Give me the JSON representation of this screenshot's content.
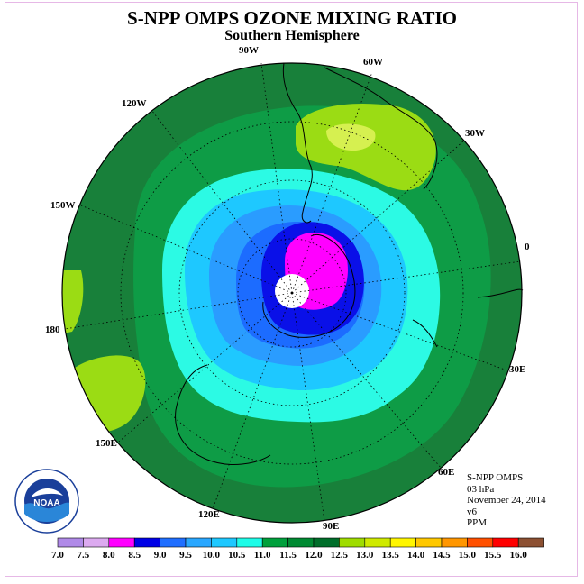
{
  "header": {
    "title": "S-NPP OMPS OZONE MIXING RATIO",
    "subtitle": "Southern Hemisphere"
  },
  "info": {
    "instrument": "S-NPP OMPS",
    "level": "03 hPa",
    "date": "November 24, 2014",
    "version": "v6",
    "units": "PPM"
  },
  "logo": {
    "text": "NOAA",
    "icon": "noaa-logo"
  },
  "longitude_labels": [
    "90W",
    "60W",
    "30W",
    "0",
    "30E",
    "60E",
    "90E",
    "120E",
    "150E",
    "180",
    "150W",
    "120W"
  ],
  "colorbar": {
    "ticks": [
      "7.0",
      "7.5",
      "8.0",
      "8.5",
      "9.0",
      "9.5",
      "10.0",
      "10.5",
      "11.0",
      "11.5",
      "12.0",
      "12.5",
      "13.0",
      "13.5",
      "14.0",
      "14.5",
      "15.0",
      "15.5",
      "16.0"
    ],
    "colors": [
      "#b08ae8",
      "#dcaaf0",
      "#ff00ff",
      "#0000e6",
      "#1f6eff",
      "#29a7ff",
      "#1ec8ff",
      "#1efce8",
      "#00a03c",
      "#008a32",
      "#006e2a",
      "#9fdc00",
      "#cfea00",
      "#fff600",
      "#ffc800",
      "#ff9600",
      "#ff5000",
      "#ff0000",
      "#8c5032"
    ]
  },
  "colors": {
    "dark_green": "#1a7a3a",
    "mid_green": "#0e9a44",
    "pale_green": "#9bdc14",
    "yellow_green": "#d6f050",
    "cyan": "#2afce6",
    "light_blue": "#1ec8ff",
    "blue": "#2a9cff",
    "mid_blue": "#1c6cff",
    "deep_blue": "#0a10e8",
    "magenta": "#ff00ff"
  }
}
